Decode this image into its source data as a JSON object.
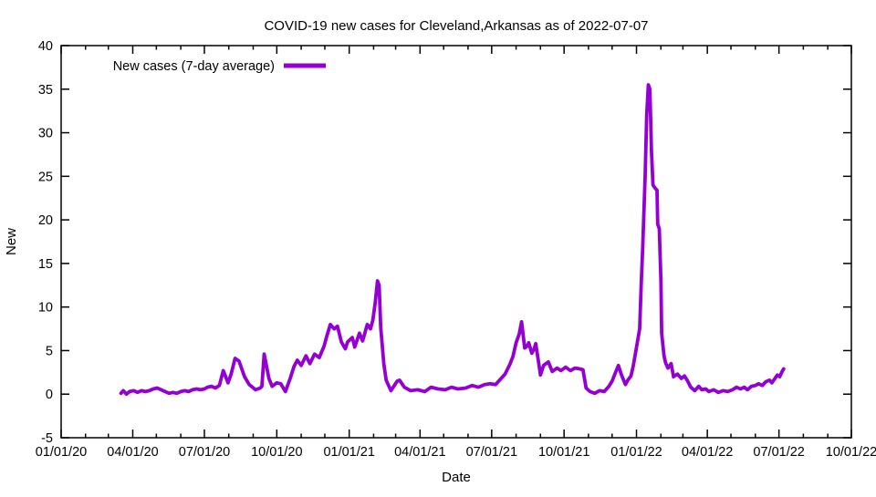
{
  "chart_data": {
    "type": "line",
    "title": "COVID-19 new cases for Cleveland,Arkansas as of 2022-07-07",
    "xlabel": "Date",
    "ylabel": "New",
    "legend": "New cases (7-day average)",
    "legend_position": "top-left-inside",
    "grid": false,
    "line_color": "#9400d3",
    "axis_color": "#000000",
    "background_color": "#ffffff",
    "ylim": [
      -5,
      40
    ],
    "xlim": [
      "2020-01-01",
      "2022-10-01"
    ],
    "y_ticks": [
      -5,
      0,
      5,
      10,
      15,
      20,
      25,
      30,
      35,
      40
    ],
    "x_ticks": [
      {
        "label": "01/01/20",
        "date": "2020-01-01"
      },
      {
        "label": "04/01/20",
        "date": "2020-04-01"
      },
      {
        "label": "07/01/20",
        "date": "2020-07-01"
      },
      {
        "label": "10/01/20",
        "date": "2020-10-01"
      },
      {
        "label": "01/01/21",
        "date": "2021-01-01"
      },
      {
        "label": "04/01/21",
        "date": "2021-04-01"
      },
      {
        "label": "07/01/21",
        "date": "2021-07-01"
      },
      {
        "label": "10/01/21",
        "date": "2021-10-01"
      },
      {
        "label": "01/01/22",
        "date": "2022-01-01"
      },
      {
        "label": "04/01/22",
        "date": "2022-04-01"
      },
      {
        "label": "07/01/22",
        "date": "2022-07-01"
      },
      {
        "label": "10/01/22",
        "date": "2022-10-01"
      }
    ],
    "series": [
      {
        "name": "New cases (7-day average)",
        "points": [
          [
            "2020-03-17",
            0.1
          ],
          [
            "2020-03-20",
            0.4
          ],
          [
            "2020-03-24",
            0.0
          ],
          [
            "2020-03-28",
            0.3
          ],
          [
            "2020-04-02",
            0.4
          ],
          [
            "2020-04-07",
            0.2
          ],
          [
            "2020-04-12",
            0.4
          ],
          [
            "2020-04-17",
            0.3
          ],
          [
            "2020-04-22",
            0.4
          ],
          [
            "2020-04-27",
            0.6
          ],
          [
            "2020-05-02",
            0.7
          ],
          [
            "2020-05-07",
            0.5
          ],
          [
            "2020-05-12",
            0.3
          ],
          [
            "2020-05-17",
            0.1
          ],
          [
            "2020-05-22",
            0.2
          ],
          [
            "2020-05-27",
            0.1
          ],
          [
            "2020-06-01",
            0.3
          ],
          [
            "2020-06-06",
            0.4
          ],
          [
            "2020-06-11",
            0.3
          ],
          [
            "2020-06-16",
            0.5
          ],
          [
            "2020-06-21",
            0.6
          ],
          [
            "2020-06-26",
            0.5
          ],
          [
            "2020-07-01",
            0.6
          ],
          [
            "2020-07-05",
            0.8
          ],
          [
            "2020-07-10",
            0.9
          ],
          [
            "2020-07-15",
            0.7
          ],
          [
            "2020-07-20",
            1.0
          ],
          [
            "2020-07-25",
            2.7
          ],
          [
            "2020-07-31",
            1.3
          ],
          [
            "2020-08-04",
            2.3
          ],
          [
            "2020-08-09",
            4.1
          ],
          [
            "2020-08-14",
            3.8
          ],
          [
            "2020-08-21",
            2.0
          ],
          [
            "2020-08-27",
            1.1
          ],
          [
            "2020-09-04",
            0.5
          ],
          [
            "2020-09-10",
            0.7
          ],
          [
            "2020-09-12",
            0.9
          ],
          [
            "2020-09-15",
            4.6
          ],
          [
            "2020-09-21",
            1.8
          ],
          [
            "2020-09-25",
            0.9
          ],
          [
            "2020-10-01",
            1.3
          ],
          [
            "2020-10-06",
            1.2
          ],
          [
            "2020-10-12",
            0.3
          ],
          [
            "2020-10-18",
            1.8
          ],
          [
            "2020-10-23",
            3.2
          ],
          [
            "2020-10-27",
            3.9
          ],
          [
            "2020-11-01",
            3.3
          ],
          [
            "2020-11-07",
            4.4
          ],
          [
            "2020-11-12",
            3.5
          ],
          [
            "2020-11-18",
            4.6
          ],
          [
            "2020-11-24",
            4.2
          ],
          [
            "2020-11-30",
            5.5
          ],
          [
            "2020-12-03",
            6.5
          ],
          [
            "2020-12-08",
            8.0
          ],
          [
            "2020-12-13",
            7.5
          ],
          [
            "2020-12-17",
            7.8
          ],
          [
            "2020-12-22",
            6.0
          ],
          [
            "2020-12-27",
            5.2
          ],
          [
            "2020-12-30",
            6.0
          ],
          [
            "2021-01-05",
            6.5
          ],
          [
            "2021-01-08",
            5.4
          ],
          [
            "2021-01-14",
            7.0
          ],
          [
            "2021-01-18",
            6.1
          ],
          [
            "2021-01-24",
            8.0
          ],
          [
            "2021-01-28",
            7.5
          ],
          [
            "2021-01-31",
            8.5
          ],
          [
            "2021-02-03",
            10.5
          ],
          [
            "2021-02-06",
            13.0
          ],
          [
            "2021-02-08",
            12.5
          ],
          [
            "2021-02-10",
            7.7
          ],
          [
            "2021-02-14",
            3.5
          ],
          [
            "2021-02-17",
            1.6
          ],
          [
            "2021-02-23",
            0.4
          ],
          [
            "2021-03-03",
            1.5
          ],
          [
            "2021-03-06",
            1.6
          ],
          [
            "2021-03-12",
            0.8
          ],
          [
            "2021-03-20",
            0.4
          ],
          [
            "2021-03-29",
            0.5
          ],
          [
            "2021-04-07",
            0.3
          ],
          [
            "2021-04-15",
            0.8
          ],
          [
            "2021-04-24",
            0.6
          ],
          [
            "2021-05-03",
            0.5
          ],
          [
            "2021-05-11",
            0.8
          ],
          [
            "2021-05-19",
            0.6
          ],
          [
            "2021-05-29",
            0.7
          ],
          [
            "2021-06-06",
            1.0
          ],
          [
            "2021-06-14",
            0.8
          ],
          [
            "2021-06-22",
            1.1
          ],
          [
            "2021-06-29",
            1.2
          ],
          [
            "2021-07-06",
            1.1
          ],
          [
            "2021-07-12",
            1.7
          ],
          [
            "2021-07-18",
            2.3
          ],
          [
            "2021-07-24",
            3.4
          ],
          [
            "2021-07-28",
            4.3
          ],
          [
            "2021-08-01",
            5.9
          ],
          [
            "2021-08-05",
            6.9
          ],
          [
            "2021-08-08",
            8.3
          ],
          [
            "2021-08-12",
            5.3
          ],
          [
            "2021-08-15",
            5.5
          ],
          [
            "2021-08-17",
            5.9
          ],
          [
            "2021-08-21",
            4.7
          ],
          [
            "2021-08-24",
            5.2
          ],
          [
            "2021-08-26",
            5.8
          ],
          [
            "2021-08-30",
            3.4
          ],
          [
            "2021-09-01",
            2.2
          ],
          [
            "2021-09-05",
            3.3
          ],
          [
            "2021-09-11",
            3.7
          ],
          [
            "2021-09-16",
            2.6
          ],
          [
            "2021-09-22",
            3.0
          ],
          [
            "2021-09-27",
            2.7
          ],
          [
            "2021-10-03",
            3.1
          ],
          [
            "2021-10-09",
            2.7
          ],
          [
            "2021-10-15",
            3.0
          ],
          [
            "2021-10-21",
            2.9
          ],
          [
            "2021-10-25",
            2.8
          ],
          [
            "2021-10-29",
            0.7
          ],
          [
            "2021-11-03",
            0.3
          ],
          [
            "2021-11-09",
            0.1
          ],
          [
            "2021-11-15",
            0.4
          ],
          [
            "2021-11-21",
            0.3
          ],
          [
            "2021-11-27",
            0.9
          ],
          [
            "2021-12-01",
            1.5
          ],
          [
            "2021-12-05",
            2.4
          ],
          [
            "2021-12-09",
            3.3
          ],
          [
            "2021-12-13",
            2.2
          ],
          [
            "2021-12-18",
            1.1
          ],
          [
            "2021-12-21",
            1.6
          ],
          [
            "2021-12-25",
            2.1
          ],
          [
            "2021-12-28",
            3.3
          ],
          [
            "2022-01-02",
            5.9
          ],
          [
            "2022-01-05",
            7.5
          ],
          [
            "2022-01-07",
            12.6
          ],
          [
            "2022-01-09",
            17.0
          ],
          [
            "2022-01-12",
            25.0
          ],
          [
            "2022-01-14",
            32.0
          ],
          [
            "2022-01-16",
            35.5
          ],
          [
            "2022-01-18",
            35.0
          ],
          [
            "2022-01-20",
            28.0
          ],
          [
            "2022-01-22",
            24.0
          ],
          [
            "2022-01-25",
            23.6
          ],
          [
            "2022-01-27",
            23.4
          ],
          [
            "2022-01-28",
            19.5
          ],
          [
            "2022-01-30",
            19.0
          ],
          [
            "2022-02-01",
            13.0
          ],
          [
            "2022-02-02",
            7.0
          ],
          [
            "2022-02-05",
            4.4
          ],
          [
            "2022-02-07",
            3.6
          ],
          [
            "2022-02-10",
            3.0
          ],
          [
            "2022-02-14",
            3.5
          ],
          [
            "2022-02-17",
            2.0
          ],
          [
            "2022-02-22",
            2.3
          ],
          [
            "2022-02-27",
            1.8
          ],
          [
            "2022-03-03",
            2.1
          ],
          [
            "2022-03-07",
            1.5
          ],
          [
            "2022-03-11",
            0.8
          ],
          [
            "2022-03-16",
            0.4
          ],
          [
            "2022-03-21",
            0.9
          ],
          [
            "2022-03-25",
            0.5
          ],
          [
            "2022-03-30",
            0.6
          ],
          [
            "2022-04-03",
            0.3
          ],
          [
            "2022-04-09",
            0.5
          ],
          [
            "2022-04-15",
            0.2
          ],
          [
            "2022-04-21",
            0.4
          ],
          [
            "2022-04-27",
            0.3
          ],
          [
            "2022-05-03",
            0.5
          ],
          [
            "2022-05-08",
            0.8
          ],
          [
            "2022-05-13",
            0.6
          ],
          [
            "2022-05-18",
            0.8
          ],
          [
            "2022-05-22",
            0.5
          ],
          [
            "2022-05-27",
            0.9
          ],
          [
            "2022-06-01",
            1.0
          ],
          [
            "2022-06-05",
            1.2
          ],
          [
            "2022-06-10",
            1.0
          ],
          [
            "2022-06-14",
            1.4
          ],
          [
            "2022-06-19",
            1.6
          ],
          [
            "2022-06-22",
            1.3
          ],
          [
            "2022-06-26",
            1.8
          ],
          [
            "2022-06-29",
            2.2
          ],
          [
            "2022-07-02",
            2.0
          ],
          [
            "2022-07-05",
            2.6
          ],
          [
            "2022-07-07",
            2.9
          ]
        ]
      }
    ]
  }
}
